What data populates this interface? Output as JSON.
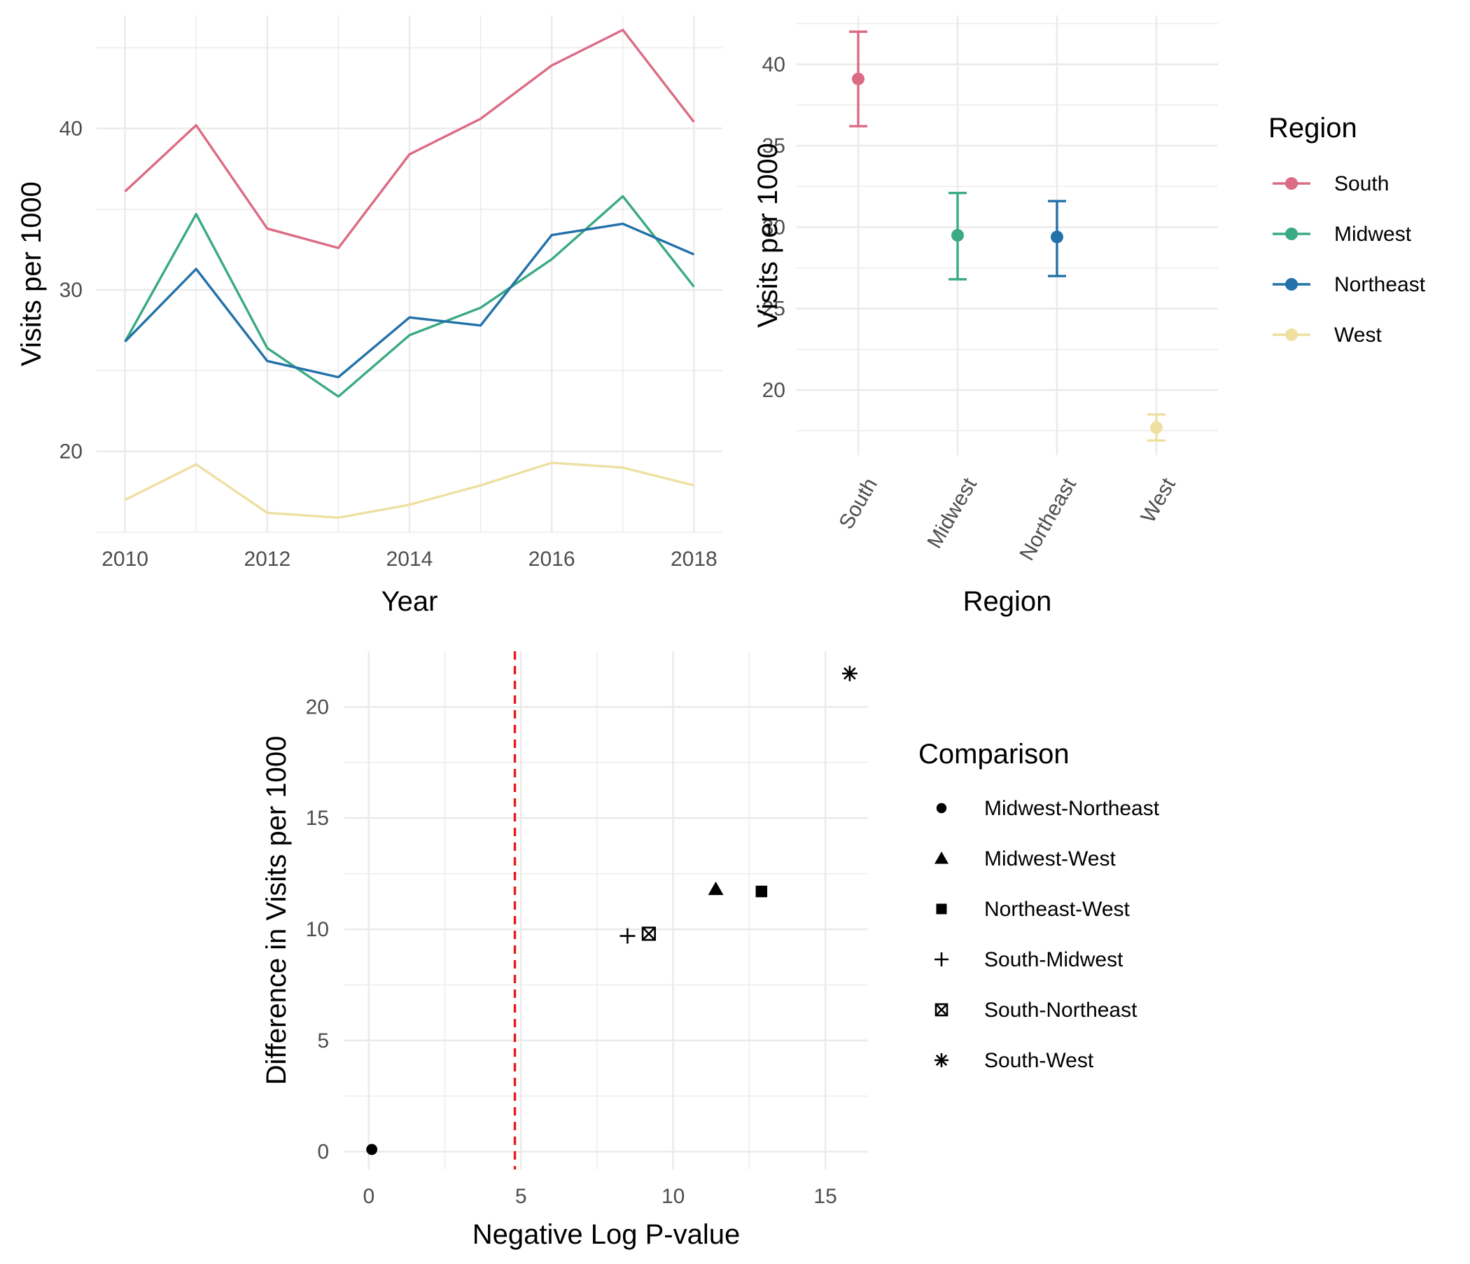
{
  "chart_data": [
    {
      "type": "line",
      "title": "",
      "xlabel": "Year",
      "ylabel": "Visits per 1000",
      "x": [
        2010,
        2011,
        2012,
        2013,
        2014,
        2015,
        2016,
        2017,
        2018
      ],
      "xticks": [
        "2010",
        "2012",
        "2014",
        "2016",
        "2018"
      ],
      "yticks": [
        "20",
        "30",
        "40"
      ],
      "xlim": [
        2009.6,
        2018.4
      ],
      "ylim": [
        15,
        47
      ],
      "grid": true,
      "legend": "shared (Region)",
      "series": [
        {
          "name": "South",
          "color": "#dc6b84",
          "values": [
            36.1,
            40.2,
            33.8,
            32.6,
            38.4,
            40.6,
            43.9,
            46.1,
            40.4
          ]
        },
        {
          "name": "Midwest",
          "color": "#3aaa82",
          "values": [
            26.8,
            34.7,
            26.4,
            23.4,
            27.2,
            28.9,
            31.9,
            35.8,
            30.2
          ]
        },
        {
          "name": "Northeast",
          "color": "#2271a9",
          "values": [
            26.8,
            31.3,
            25.6,
            24.6,
            28.3,
            27.8,
            33.4,
            34.1,
            32.2
          ]
        },
        {
          "name": "West",
          "color": "#ede0a1",
          "values": [
            17.0,
            19.2,
            16.2,
            15.9,
            16.7,
            17.9,
            19.3,
            19.0,
            17.9
          ]
        }
      ]
    },
    {
      "type": "scatter",
      "title": "",
      "xlabel": "Region",
      "ylabel": "Visits per 1000",
      "categories": [
        "South",
        "Midwest",
        "Northeast",
        "West"
      ],
      "yticks": [
        "20",
        "25",
        "30",
        "35",
        "40"
      ],
      "ylim": [
        16,
        43
      ],
      "grid": true,
      "legend": "right",
      "legend_title": "Region",
      "legend_entries": [
        "South",
        "Midwest",
        "Northeast",
        "West"
      ],
      "series": [
        {
          "name": "South",
          "color": "#dc6b84",
          "mean": 39.1,
          "lower": 36.2,
          "upper": 42.0
        },
        {
          "name": "Midwest",
          "color": "#3aaa82",
          "mean": 29.5,
          "lower": 26.8,
          "upper": 32.1
        },
        {
          "name": "Northeast",
          "color": "#2271a9",
          "mean": 29.4,
          "lower": 27.0,
          "upper": 31.6
        },
        {
          "name": "West",
          "color": "#ede0a1",
          "mean": 17.7,
          "lower": 16.9,
          "upper": 18.5
        }
      ]
    },
    {
      "type": "scatter",
      "title": "",
      "xlabel": "Negative Log P-value",
      "ylabel": "Difference in Visits per 1000",
      "xticks": [
        "0",
        "5",
        "10",
        "15"
      ],
      "yticks": [
        "0",
        "5",
        "10",
        "15",
        "20"
      ],
      "xlim": [
        -0.8,
        16.4
      ],
      "ylim": [
        -0.8,
        22.5
      ],
      "grid": true,
      "reference_line": {
        "x": 4.8,
        "color": "#e41a1c",
        "style": "dashed"
      },
      "legend": "right",
      "legend_title": "Comparison",
      "legend_entries": [
        "Midwest-Northeast",
        "Midwest-West",
        "Northeast-West",
        "South-Midwest",
        "South-Northeast",
        "South-West"
      ],
      "points": [
        {
          "name": "Midwest-Northeast",
          "shape": "circle",
          "x": 0.1,
          "y": 0.1
        },
        {
          "name": "Midwest-West",
          "shape": "triangle",
          "x": 11.4,
          "y": 11.8
        },
        {
          "name": "Northeast-West",
          "shape": "square",
          "x": 12.9,
          "y": 11.7
        },
        {
          "name": "South-Midwest",
          "shape": "plus",
          "x": 8.5,
          "y": 9.7
        },
        {
          "name": "South-Northeast",
          "shape": "boxed-x",
          "x": 9.2,
          "y": 9.8
        },
        {
          "name": "South-West",
          "shape": "asterisk",
          "x": 15.8,
          "y": 21.5
        }
      ]
    }
  ]
}
